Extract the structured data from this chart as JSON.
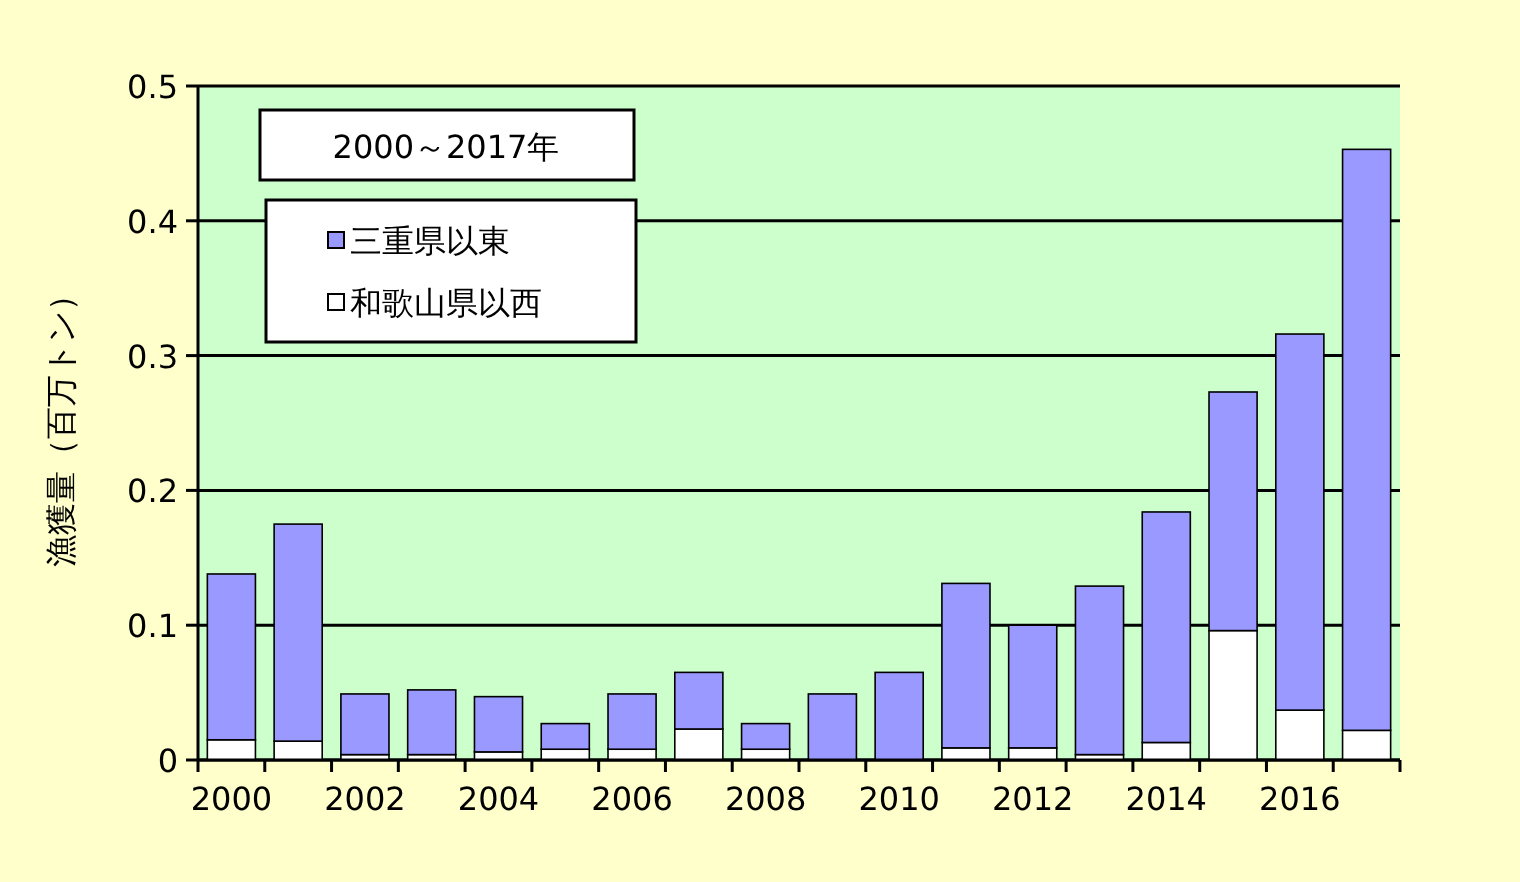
{
  "chart_data": {
    "type": "bar",
    "title": "2000～2017年",
    "ylabel": "漁獲量（百万トン）",
    "stacked": true,
    "categories": [
      "2000",
      null,
      "2002",
      null,
      "2004",
      null,
      "2006",
      null,
      "2008",
      null,
      "2010",
      null,
      "2012",
      null,
      "2014",
      null,
      "2016",
      null
    ],
    "series": [
      {
        "name": "和歌山県以西",
        "color": "#ffffff",
        "values": [
          0.015,
          0.014,
          0.004,
          0.004,
          0.006,
          0.008,
          0.008,
          0.023,
          0.008,
          null,
          null,
          0.009,
          0.009,
          0.004,
          0.013,
          0.096,
          0.037,
          0.022
        ]
      },
      {
        "name": "三重県以東",
        "color": "#9999ff",
        "values": [
          0.123,
          0.161,
          0.045,
          0.048,
          0.041,
          0.019,
          0.041,
          0.042,
          0.019,
          0.049,
          0.065,
          0.122,
          0.091,
          0.125,
          0.171,
          0.177,
          0.279,
          0.431
        ]
      }
    ],
    "ylim": [
      0,
      0.5
    ],
    "yticks": [
      0,
      0.1,
      0.2,
      0.3,
      0.4,
      0.5
    ],
    "grid": "y",
    "legend": "top left"
  }
}
